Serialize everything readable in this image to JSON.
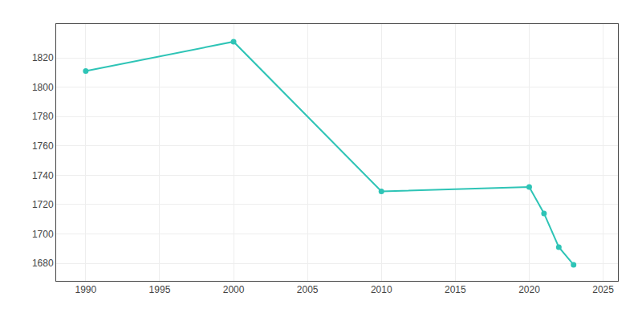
{
  "chart_data": {
    "type": "line",
    "x": [
      1990,
      2000,
      2010,
      2020,
      2021,
      2022,
      2023
    ],
    "values": [
      1811,
      1831,
      1729,
      1732,
      1714,
      1691,
      1679
    ],
    "color": "#2EC4B6",
    "marker": "circle",
    "xlim": [
      1988,
      2026
    ],
    "ylim": [
      1668,
      1843
    ],
    "xticks": [
      1990,
      1995,
      2000,
      2005,
      2010,
      2015,
      2020,
      2025
    ],
    "yticks": [
      1680,
      1700,
      1720,
      1740,
      1760,
      1780,
      1800,
      1820
    ],
    "grid": true
  }
}
